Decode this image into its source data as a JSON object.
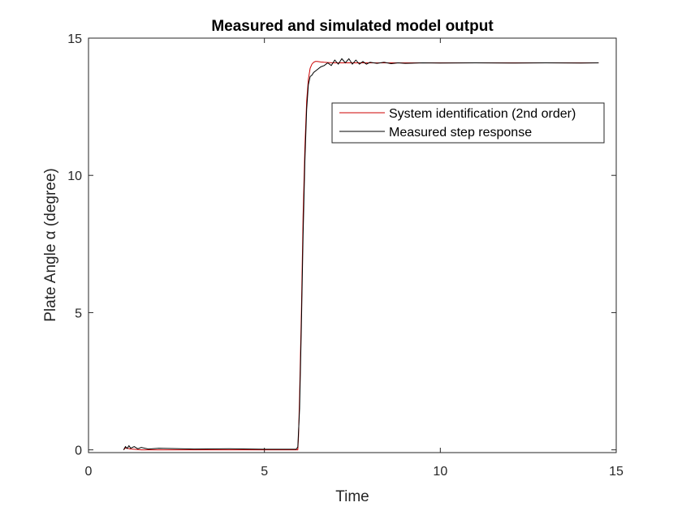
{
  "chart_data": {
    "type": "line",
    "title": "Measured and simulated model output",
    "xlabel": "Time",
    "ylabel": "Plate Angle α (degree)",
    "xlim": [
      0,
      15
    ],
    "ylim": [
      -0.1,
      15
    ],
    "xticks": [
      0,
      5,
      10,
      15
    ],
    "yticks": [
      0,
      5,
      10,
      15
    ],
    "grid": false,
    "legend_position": "top-right",
    "series": [
      {
        "name": "System identification (2nd order)",
        "color": "#cc0000",
        "x": [
          1.0,
          1.05,
          1.1,
          1.2,
          1.3,
          1.5,
          5.95,
          5.97,
          6.0,
          6.05,
          6.1,
          6.15,
          6.2,
          6.25,
          6.3,
          6.35,
          6.4,
          6.45,
          6.5,
          6.6,
          6.7,
          6.8,
          7.0,
          8.0,
          10.0,
          12.0,
          14.5
        ],
        "y": [
          0.0,
          0.07,
          0.06,
          0.03,
          0.02,
          0.0,
          0.0,
          0.5,
          2.0,
          5.0,
          8.5,
          11.0,
          12.7,
          13.5,
          13.9,
          14.05,
          14.12,
          14.15,
          14.15,
          14.13,
          14.12,
          14.11,
          14.1,
          14.1,
          14.1,
          14.1,
          14.1
        ]
      },
      {
        "name": "Measured step response",
        "color": "#000000",
        "x": [
          1.0,
          1.05,
          1.1,
          1.15,
          1.2,
          1.3,
          1.4,
          1.5,
          1.7,
          2.0,
          3.0,
          4.0,
          5.0,
          5.9,
          5.95,
          6.0,
          6.05,
          6.1,
          6.15,
          6.2,
          6.25,
          6.3,
          6.35,
          6.4,
          6.5,
          6.6,
          6.7,
          6.8,
          6.9,
          7.0,
          7.1,
          7.2,
          7.3,
          7.4,
          7.5,
          7.6,
          7.7,
          7.8,
          7.9,
          8.0,
          8.2,
          8.4,
          8.6,
          8.8,
          9.0,
          9.5,
          10.0,
          11.0,
          12.0,
          13.0,
          14.0,
          14.5
        ],
        "y": [
          0.0,
          0.12,
          0.05,
          0.15,
          0.06,
          0.12,
          0.04,
          0.09,
          0.03,
          0.06,
          0.03,
          0.04,
          0.02,
          0.02,
          0.1,
          1.5,
          4.5,
          7.8,
          10.5,
          12.4,
          13.3,
          13.6,
          13.65,
          13.75,
          13.85,
          13.95,
          14.0,
          14.1,
          14.0,
          14.2,
          14.05,
          14.25,
          14.1,
          14.25,
          14.05,
          14.2,
          14.05,
          14.15,
          14.05,
          14.12,
          14.08,
          14.12,
          14.07,
          14.1,
          14.08,
          14.1,
          14.09,
          14.1,
          14.09,
          14.1,
          14.09,
          14.1
        ]
      }
    ]
  }
}
